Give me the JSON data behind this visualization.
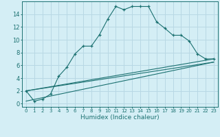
{
  "xlabel": "Humidex (Indice chaleur)",
  "bg_color": "#d4eef5",
  "grid_color": "#b8d8e4",
  "line_color": "#1a7070",
  "xlim": [
    -0.5,
    23.5
  ],
  "ylim": [
    -0.5,
    16.0
  ],
  "yticks": [
    0,
    2,
    4,
    6,
    8,
    10,
    12,
    14
  ],
  "xticks": [
    0,
    1,
    2,
    3,
    4,
    5,
    6,
    7,
    8,
    9,
    10,
    11,
    12,
    13,
    14,
    15,
    16,
    17,
    18,
    19,
    20,
    21,
    22,
    23
  ],
  "curve1_x": [
    0,
    1,
    2,
    3,
    4,
    5,
    6,
    7,
    8,
    9,
    10,
    11,
    12,
    13,
    14,
    15,
    16,
    17,
    18,
    19,
    20,
    21,
    22,
    23
  ],
  "curve1_y": [
    2.0,
    0.4,
    0.7,
    1.5,
    4.3,
    5.7,
    7.8,
    9.0,
    9.0,
    10.8,
    13.2,
    15.2,
    14.7,
    15.2,
    15.2,
    15.2,
    12.8,
    11.8,
    10.7,
    10.7,
    9.8,
    7.8,
    7.0,
    7.0
  ],
  "line2_x": [
    0,
    23
  ],
  "line2_y": [
    2.0,
    7.0
  ],
  "line3_x": [
    0,
    23
  ],
  "line3_y": [
    2.0,
    6.5
  ],
  "line4_x": [
    0,
    23
  ],
  "line4_y": [
    0.4,
    6.5
  ],
  "xlabel_fontsize": 6.5,
  "tick_fontsize_x": 5.0,
  "tick_fontsize_y": 6.0
}
